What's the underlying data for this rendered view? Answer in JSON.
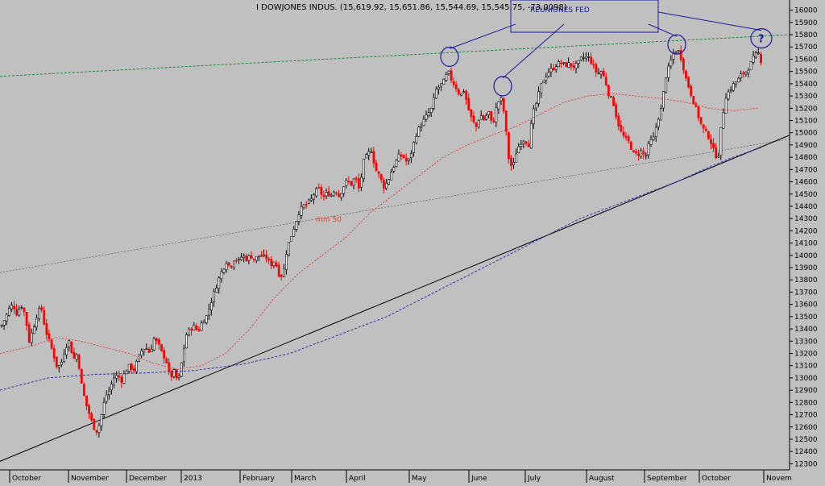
{
  "chart_data": {
    "type": "candlestick",
    "title": "I DOWJONES INDUS. (15,619.92, 15,651.86, 15,544.69, 15,545.75, -73.0098)",
    "annotation_box": "REUNIONES FED",
    "ma_label": "mm 50",
    "question_mark": "?",
    "x_labels": [
      "October",
      "November",
      "December",
      "2013",
      "February",
      "March",
      "April",
      "May",
      "June",
      "July",
      "August",
      "September",
      "October",
      "Novem"
    ],
    "y_ticks": [
      12300,
      12400,
      12500,
      12600,
      12700,
      12800,
      12900,
      13000,
      13100,
      13200,
      13300,
      13400,
      13500,
      13600,
      13700,
      13800,
      13900,
      14000,
      14100,
      14200,
      14300,
      14400,
      14500,
      14600,
      14700,
      14800,
      14900,
      15000,
      15100,
      15200,
      15300,
      15400,
      15500,
      15600,
      15700,
      15800,
      15900,
      16000
    ],
    "ylim": [
      12250,
      16050
    ],
    "price_path": [
      [
        0,
        13420
      ],
      [
        5,
        13480
      ],
      [
        10,
        13560
      ],
      [
        15,
        13600
      ],
      [
        20,
        13520
      ],
      [
        25,
        13600
      ],
      [
        30,
        13520
      ],
      [
        35,
        13300
      ],
      [
        40,
        13400
      ],
      [
        45,
        13520
      ],
      [
        50,
        13580
      ],
      [
        55,
        13400
      ],
      [
        60,
        13300
      ],
      [
        65,
        13200
      ],
      [
        70,
        13080
      ],
      [
        75,
        13120
      ],
      [
        80,
        13250
      ],
      [
        85,
        13300
      ],
      [
        90,
        13150
      ],
      [
        95,
        13200
      ],
      [
        100,
        12950
      ],
      [
        105,
        12800
      ],
      [
        110,
        12700
      ],
      [
        115,
        12600
      ],
      [
        120,
        12560
      ],
      [
        125,
        12700
      ],
      [
        130,
        12850
      ],
      [
        135,
        12900
      ],
      [
        140,
        13000
      ],
      [
        145,
        13020
      ],
      [
        150,
        12980
      ],
      [
        155,
        13060
      ],
      [
        160,
        13100
      ],
      [
        165,
        13060
      ],
      [
        170,
        13150
      ],
      [
        175,
        13230
      ],
      [
        180,
        13250
      ],
      [
        185,
        13200
      ],
      [
        190,
        13320
      ],
      [
        195,
        13280
      ],
      [
        200,
        13200
      ],
      [
        205,
        13150
      ],
      [
        210,
        13000
      ],
      [
        215,
        13050
      ],
      [
        220,
        12960
      ],
      [
        225,
        13150
      ],
      [
        230,
        13350
      ],
      [
        235,
        13400
      ],
      [
        240,
        13420
      ],
      [
        245,
        13380
      ],
      [
        250,
        13460
      ],
      [
        255,
        13500
      ],
      [
        260,
        13600
      ],
      [
        265,
        13700
      ],
      [
        270,
        13800
      ],
      [
        275,
        13880
      ],
      [
        280,
        13950
      ],
      [
        285,
        13900
      ],
      [
        290,
        13980
      ],
      [
        295,
        13950
      ],
      [
        300,
        14000
      ],
      [
        305,
        13970
      ],
      [
        310,
        14000
      ],
      [
        315,
        13960
      ],
      [
        320,
        14000
      ],
      [
        325,
        13990
      ],
      [
        330,
        13980
      ],
      [
        335,
        13920
      ],
      [
        340,
        13960
      ],
      [
        345,
        13850
      ],
      [
        350,
        13830
      ],
      [
        355,
        14050
      ],
      [
        360,
        14150
      ],
      [
        365,
        14250
      ],
      [
        370,
        14350
      ],
      [
        375,
        14400
      ],
      [
        380,
        14420
      ],
      [
        385,
        14450
      ],
      [
        390,
        14520
      ],
      [
        395,
        14540
      ],
      [
        400,
        14470
      ],
      [
        405,
        14510
      ],
      [
        410,
        14490
      ],
      [
        415,
        14540
      ],
      [
        420,
        14480
      ],
      [
        425,
        14560
      ],
      [
        430,
        14610
      ],
      [
        435,
        14580
      ],
      [
        440,
        14640
      ],
      [
        445,
        14530
      ],
      [
        450,
        14760
      ],
      [
        455,
        14820
      ],
      [
        460,
        14860
      ],
      [
        465,
        14700
      ],
      [
        470,
        14650
      ],
      [
        475,
        14560
      ],
      [
        480,
        14600
      ],
      [
        485,
        14690
      ],
      [
        490,
        14760
      ],
      [
        495,
        14820
      ],
      [
        500,
        14800
      ],
      [
        505,
        14750
      ],
      [
        510,
        14850
      ],
      [
        515,
        14980
      ],
      [
        520,
        15050
      ],
      [
        525,
        15100
      ],
      [
        530,
        15150
      ],
      [
        535,
        15200
      ],
      [
        540,
        15350
      ],
      [
        545,
        15380
      ],
      [
        550,
        15420
      ],
      [
        555,
        15500
      ],
      [
        560,
        15420
      ],
      [
        565,
        15370
      ],
      [
        570,
        15300
      ],
      [
        575,
        15350
      ],
      [
        580,
        15200
      ],
      [
        585,
        15100
      ],
      [
        590,
        15050
      ],
      [
        595,
        15150
      ],
      [
        600,
        15100
      ],
      [
        605,
        15180
      ],
      [
        610,
        15050
      ],
      [
        615,
        15200
      ],
      [
        620,
        15300
      ],
      [
        625,
        15150
      ],
      [
        630,
        14800
      ],
      [
        635,
        14700
      ],
      [
        640,
        14850
      ],
      [
        645,
        14920
      ],
      [
        650,
        14950
      ],
      [
        655,
        14900
      ],
      [
        660,
        15150
      ],
      [
        665,
        15250
      ],
      [
        670,
        15380
      ],
      [
        675,
        15450
      ],
      [
        680,
        15500
      ],
      [
        685,
        15520
      ],
      [
        690,
        15560
      ],
      [
        695,
        15570
      ],
      [
        700,
        15550
      ],
      [
        705,
        15560
      ],
      [
        710,
        15540
      ],
      [
        715,
        15550
      ],
      [
        720,
        15600
      ],
      [
        725,
        15620
      ],
      [
        730,
        15610
      ],
      [
        735,
        15550
      ],
      [
        740,
        15480
      ],
      [
        745,
        15500
      ],
      [
        750,
        15430
      ],
      [
        755,
        15300
      ],
      [
        760,
        15250
      ],
      [
        765,
        15100
      ],
      [
        770,
        15000
      ],
      [
        775,
        14950
      ],
      [
        780,
        14920
      ],
      [
        785,
        14830
      ],
      [
        790,
        14820
      ],
      [
        795,
        14850
      ],
      [
        800,
        14800
      ],
      [
        805,
        14920
      ],
      [
        810,
        14950
      ],
      [
        815,
        15100
      ],
      [
        820,
        15200
      ],
      [
        825,
        15450
      ],
      [
        830,
        15550
      ],
      [
        835,
        15650
      ],
      [
        840,
        15680
      ],
      [
        845,
        15600
      ],
      [
        850,
        15450
      ],
      [
        855,
        15350
      ],
      [
        860,
        15250
      ],
      [
        865,
        15150
      ],
      [
        870,
        15050
      ],
      [
        875,
        15000
      ],
      [
        880,
        14950
      ],
      [
        885,
        14850
      ],
      [
        890,
        14780
      ],
      [
        895,
        15100
      ],
      [
        900,
        15300
      ],
      [
        905,
        15350
      ],
      [
        910,
        15400
      ],
      [
        915,
        15430
      ],
      [
        920,
        15480
      ],
      [
        925,
        15500
      ],
      [
        930,
        15550
      ],
      [
        935,
        15620
      ],
      [
        940,
        15650
      ],
      [
        945,
        15560
      ]
    ],
    "ma50_path": [
      [
        0,
        13200
      ],
      [
        40,
        13260
      ],
      [
        70,
        13330
      ],
      [
        100,
        13300
      ],
      [
        130,
        13250
      ],
      [
        160,
        13200
      ],
      [
        190,
        13120
      ],
      [
        220,
        13070
      ],
      [
        250,
        13100
      ],
      [
        280,
        13200
      ],
      [
        310,
        13400
      ],
      [
        340,
        13650
      ],
      [
        370,
        13850
      ],
      [
        400,
        14000
      ],
      [
        430,
        14150
      ],
      [
        460,
        14350
      ],
      [
        490,
        14500
      ],
      [
        520,
        14650
      ],
      [
        550,
        14800
      ],
      [
        580,
        14900
      ],
      [
        610,
        14980
      ],
      [
        640,
        15050
      ],
      [
        670,
        15150
      ],
      [
        700,
        15250
      ],
      [
        730,
        15300
      ],
      [
        760,
        15320
      ],
      [
        790,
        15300
      ],
      [
        820,
        15280
      ],
      [
        850,
        15250
      ],
      [
        880,
        15200
      ],
      [
        910,
        15180
      ],
      [
        940,
        15200
      ]
    ],
    "ma200_path": [
      [
        0,
        12900
      ],
      [
        60,
        13000
      ],
      [
        120,
        13030
      ],
      [
        180,
        13040
      ],
      [
        240,
        13060
      ],
      [
        300,
        13110
      ],
      [
        360,
        13200
      ],
      [
        420,
        13350
      ],
      [
        480,
        13500
      ],
      [
        540,
        13700
      ],
      [
        600,
        13900
      ],
      [
        660,
        14100
      ],
      [
        720,
        14300
      ],
      [
        780,
        14450
      ],
      [
        840,
        14600
      ],
      [
        880,
        14720
      ],
      [
        910,
        14800
      ],
      [
        945,
        14880
      ]
    ],
    "green_trend": [
      [
        0,
        15460
      ],
      [
        980,
        15800
      ]
    ],
    "gray_trend": [
      [
        0,
        13860
      ],
      [
        980,
        14950
      ]
    ],
    "black_trend": [
      [
        0,
        12320
      ],
      [
        980,
        14980
      ]
    ],
    "fed_circles": [
      [
        558,
        15620
      ],
      [
        624,
        15380
      ],
      [
        840,
        15720
      ],
      [
        945,
        15770
      ]
    ]
  }
}
